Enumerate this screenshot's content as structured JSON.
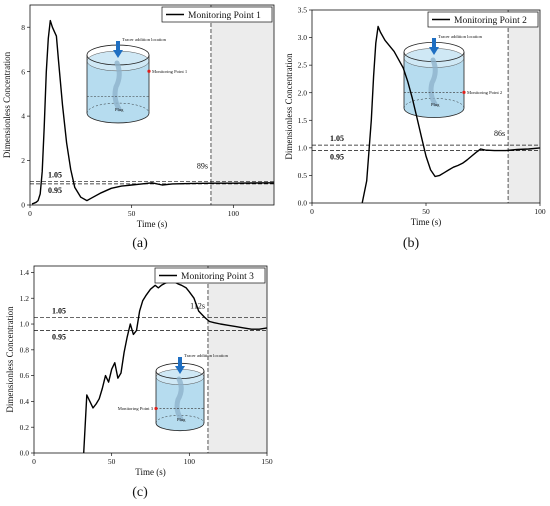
{
  "figure": {
    "panel_labels": [
      "(a)",
      "(b)",
      "(c)"
    ],
    "annotations": {
      "tracer": "Tracer addition location",
      "plug": "Plug"
    },
    "colors": {
      "line": "#000000",
      "shade": "#ececec",
      "tank_fill": "#b6dcef",
      "arrow": "#1f6fc2",
      "marker": "#e0201b"
    }
  },
  "chart_data": [
    {
      "type": "line",
      "panel": "(a)",
      "xlabel": "Time (s)",
      "ylabel": "Dimensionless Concentration",
      "xlim": [
        0,
        120
      ],
      "ylim": [
        0,
        9
      ],
      "xticks": [
        0,
        50,
        100
      ],
      "yticks": [
        0,
        2,
        4,
        6,
        8
      ],
      "legend": "top-right",
      "series": [
        {
          "name": "Monitoring Point 1",
          "x": [
            1,
            2,
            3,
            4,
            5,
            6,
            7,
            8,
            9,
            10,
            11,
            12,
            13,
            14,
            16,
            18,
            20,
            22,
            25,
            28,
            30,
            35,
            40,
            45,
            50,
            55,
            60,
            65,
            70,
            80,
            90,
            100,
            110,
            120
          ],
          "y": [
            0.05,
            0.08,
            0.12,
            0.2,
            0.5,
            1.5,
            3.5,
            6.0,
            7.5,
            8.3,
            8.0,
            7.8,
            7.6,
            6.5,
            4.5,
            2.8,
            1.6,
            0.8,
            0.35,
            0.2,
            0.3,
            0.55,
            0.75,
            0.85,
            0.9,
            0.95,
            1.0,
            0.9,
            0.95,
            0.97,
            0.98,
            0.98,
            0.99,
            1.0
          ]
        }
      ],
      "threshold_lines": [
        1.05,
        0.95
      ],
      "threshold_labels": [
        "1.05",
        "0.95"
      ],
      "settling_time": 89,
      "settling_label": "89s",
      "inset_point_label": "Monitoring Point 1"
    },
    {
      "type": "line",
      "panel": "(b)",
      "xlabel": "Time (s)",
      "ylabel": "Dimensionless Concentration",
      "xlim": [
        0,
        100
      ],
      "ylim": [
        0,
        3.5
      ],
      "xticks": [
        0,
        50,
        100
      ],
      "yticks": [
        0.0,
        0.5,
        1.0,
        1.5,
        2.0,
        2.5,
        3.0,
        3.5
      ],
      "legend": "top-right",
      "series": [
        {
          "name": "Monitoring Point 2",
          "x": [
            22,
            24,
            26,
            27,
            28,
            29,
            30,
            32,
            34,
            36,
            38,
            40,
            42,
            44,
            46,
            48,
            50,
            52,
            54,
            56,
            58,
            60,
            62,
            64,
            66,
            68,
            70,
            72,
            74,
            76,
            80,
            85,
            90,
            95,
            100
          ],
          "y": [
            0.0,
            0.4,
            1.5,
            2.3,
            2.9,
            3.2,
            3.1,
            2.95,
            2.85,
            2.75,
            2.6,
            2.45,
            2.2,
            1.9,
            1.55,
            1.2,
            0.85,
            0.6,
            0.48,
            0.5,
            0.55,
            0.6,
            0.65,
            0.68,
            0.72,
            0.78,
            0.85,
            0.92,
            0.98,
            0.96,
            0.95,
            0.95,
            0.97,
            0.98,
            1.0
          ]
        }
      ],
      "threshold_lines": [
        1.05,
        0.95
      ],
      "threshold_labels": [
        "1.05",
        "0.95"
      ],
      "settling_time": 86,
      "settling_label": "86s",
      "inset_point_label": "Monitoring Point 2"
    },
    {
      "type": "line",
      "panel": "(c)",
      "xlabel": "Time (s)",
      "ylabel": "Dimensionless Concentration",
      "xlim": [
        0,
        150
      ],
      "ylim": [
        0,
        1.45
      ],
      "xticks": [
        0,
        50,
        100,
        150
      ],
      "yticks": [
        0.0,
        0.2,
        0.4,
        0.6,
        0.8,
        1.0,
        1.2,
        1.4
      ],
      "legend": "top-right",
      "series": [
        {
          "name": "Monitoring Point 3",
          "x": [
            32,
            34,
            36,
            38,
            40,
            42,
            44,
            46,
            48,
            50,
            52,
            54,
            56,
            58,
            60,
            62,
            64,
            66,
            68,
            70,
            72,
            75,
            78,
            80,
            82,
            85,
            88,
            90,
            93,
            95,
            98,
            100,
            103,
            106,
            110,
            113,
            116,
            120,
            125,
            130,
            135,
            140,
            145,
            150
          ],
          "y": [
            0.0,
            0.45,
            0.4,
            0.35,
            0.38,
            0.42,
            0.5,
            0.6,
            0.55,
            0.65,
            0.7,
            0.58,
            0.62,
            0.78,
            0.9,
            1.0,
            0.92,
            0.95,
            1.1,
            1.18,
            1.22,
            1.27,
            1.3,
            1.28,
            1.3,
            1.32,
            1.33,
            1.33,
            1.31,
            1.3,
            1.28,
            1.25,
            1.2,
            1.1,
            1.05,
            1.02,
            1.01,
            1.0,
            0.99,
            0.98,
            0.97,
            0.96,
            0.96,
            0.97
          ]
        }
      ],
      "threshold_lines": [
        1.05,
        0.95
      ],
      "threshold_labels": [
        "1.05",
        "0.95"
      ],
      "settling_time": 112,
      "settling_label": "112s",
      "inset_point_label": "Monitoring Point 3"
    }
  ]
}
